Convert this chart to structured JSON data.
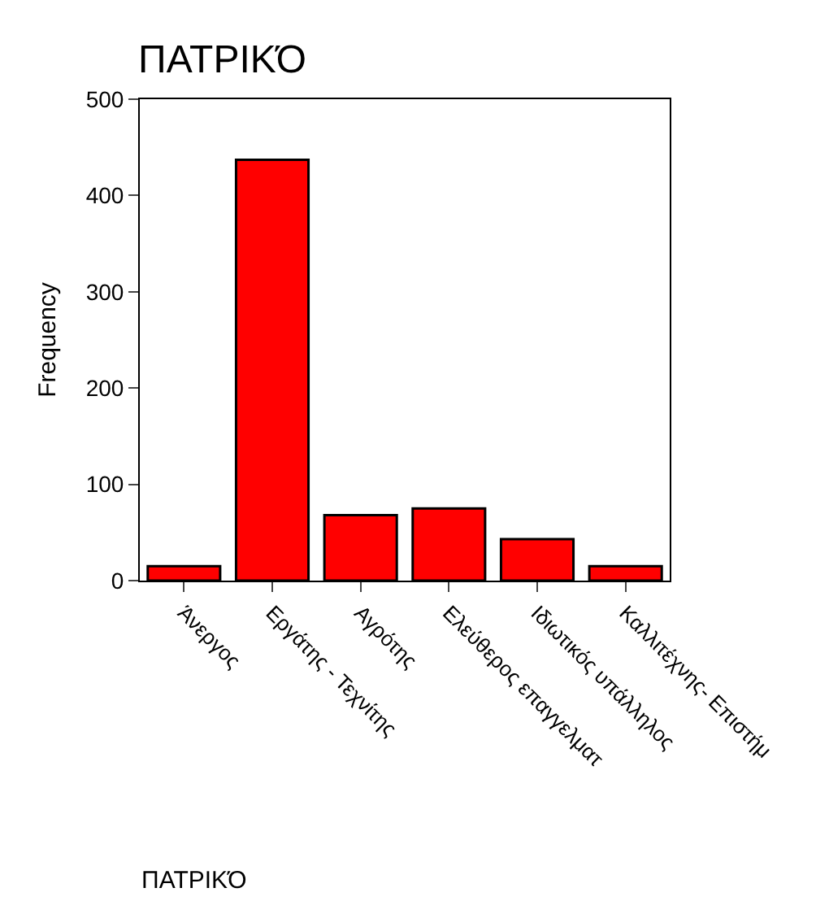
{
  "chart_data": {
    "type": "bar",
    "title": "ΠΑΤΡΙΚΌ",
    "xlabel": "ΠΑΤΡΙΚΌ",
    "ylabel": "Frequency",
    "categories": [
      "Άνεργος",
      "Εργάτης - Τεχνίτης",
      "Αγρότης",
      "Ελεύθερος επαγγελματ",
      "Ιδιωτικός υπάλληλος",
      "Καλλιτέχνης- Επιστήμ"
    ],
    "values": [
      15,
      437,
      68,
      75,
      43,
      15
    ],
    "color": "#ff0000",
    "ylim": [
      0,
      500
    ],
    "yticks": [
      0,
      100,
      200,
      300,
      400,
      500
    ]
  }
}
